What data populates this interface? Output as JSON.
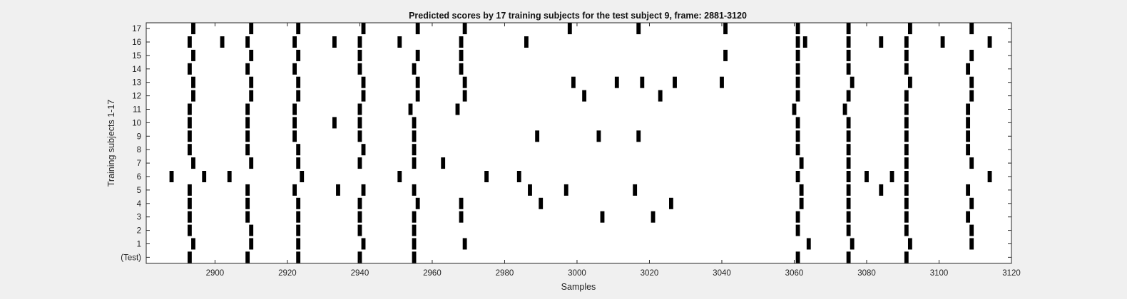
{
  "chart_data": {
    "type": "raster",
    "title": "Predicted scores by 17 training subjects for the test subject 9, frame: 2881-3120",
    "xlabel": "Samples",
    "ylabel": "Training subjects 1-17",
    "xlim": [
      2881,
      3120
    ],
    "xticks": [
      2900,
      2920,
      2940,
      2960,
      2980,
      3000,
      3020,
      3040,
      3060,
      3080,
      3100,
      3120
    ],
    "yticks": [
      "(Test)",
      "1",
      "2",
      "3",
      "4",
      "5",
      "6",
      "7",
      "8",
      "9",
      "10",
      "11",
      "12",
      "13",
      "14",
      "15",
      "16",
      "17"
    ],
    "grid": false,
    "colors": {
      "marks": "#000000",
      "plot_bg": "#ffffff",
      "figure_bg": "#f0f0f0",
      "axis": "#262626"
    },
    "rows": [
      {
        "label": "(Test)",
        "events": [
          2893,
          2909,
          2923,
          2940,
          2955,
          3061,
          3075,
          3091
        ]
      },
      {
        "label": "1",
        "events": [
          2894,
          2910,
          2923,
          2941,
          2955,
          2969,
          3064,
          3076,
          3092,
          3109
        ]
      },
      {
        "label": "2",
        "events": [
          2893,
          2910,
          2923,
          2940,
          2955,
          3061,
          3075,
          3091,
          3109
        ]
      },
      {
        "label": "3",
        "events": [
          2893,
          2909,
          2923,
          2940,
          2955,
          2968,
          3007,
          3021,
          3061,
          3075,
          3091,
          3108
        ]
      },
      {
        "label": "4",
        "events": [
          2893,
          2909,
          2923,
          2940,
          2956,
          2968,
          2990,
          3026,
          3062,
          3075,
          3091,
          3109
        ]
      },
      {
        "label": "5",
        "events": [
          2893,
          2909,
          2922,
          2934,
          2941,
          2955,
          2987,
          2997,
          3016,
          3062,
          3075,
          3084,
          3091,
          3108
        ]
      },
      {
        "label": "6",
        "events": [
          2888,
          2897,
          2904,
          2924,
          2951,
          2975,
          2984,
          3061,
          3075,
          3080,
          3087,
          3091,
          3114
        ]
      },
      {
        "label": "7",
        "events": [
          2894,
          2910,
          2923,
          2940,
          2955,
          2963,
          3062,
          3075,
          3091,
          3109
        ]
      },
      {
        "label": "8",
        "events": [
          2893,
          2909,
          2923,
          2941,
          2955,
          3061,
          3075,
          3091,
          3108
        ]
      },
      {
        "label": "9",
        "events": [
          2893,
          2909,
          2922,
          2940,
          2955,
          2989,
          3006,
          3017,
          3061,
          3075,
          3091,
          3108
        ]
      },
      {
        "label": "10",
        "events": [
          2893,
          2909,
          2922,
          2933,
          2940,
          2955,
          3061,
          3075,
          3091,
          3108
        ]
      },
      {
        "label": "11",
        "events": [
          2893,
          2909,
          2922,
          2940,
          2954,
          2967,
          3060,
          3074,
          3091,
          3108
        ]
      },
      {
        "label": "12",
        "events": [
          2894,
          2910,
          2923,
          2941,
          2956,
          2969,
          3002,
          3023,
          3061,
          3075,
          3091,
          3109
        ]
      },
      {
        "label": "13",
        "events": [
          2894,
          2910,
          2923,
          2941,
          2956,
          2969,
          2999,
          3011,
          3018,
          3027,
          3040,
          3061,
          3076,
          3092,
          3109
        ]
      },
      {
        "label": "14",
        "events": [
          2893,
          2909,
          2922,
          2940,
          2955,
          2968,
          3061,
          3075,
          3091,
          3108
        ]
      },
      {
        "label": "15",
        "events": [
          2894,
          2910,
          2923,
          2940,
          2956,
          2968,
          3041,
          3061,
          3075,
          3091,
          3109
        ]
      },
      {
        "label": "16",
        "events": [
          2893,
          2902,
          2909,
          2922,
          2933,
          2940,
          2951,
          2968,
          2986,
          3061,
          3063,
          3075,
          3084,
          3091,
          3101,
          3114
        ]
      },
      {
        "label": "17",
        "events": [
          2894,
          2910,
          2923,
          2941,
          2956,
          2969,
          2998,
          3017,
          3041,
          3061,
          3075,
          3092,
          3109
        ]
      }
    ]
  }
}
